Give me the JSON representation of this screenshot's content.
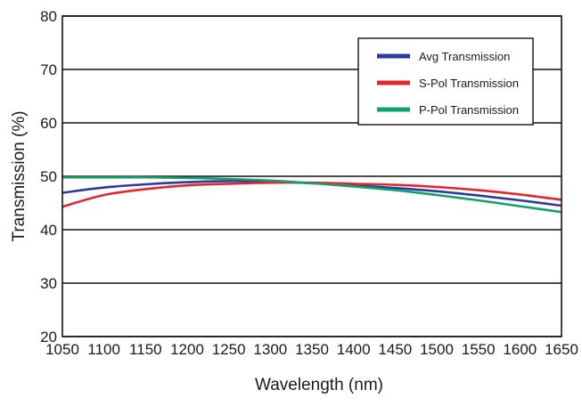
{
  "chart_data": {
    "type": "line",
    "title": "",
    "xlabel": "Wavelength (nm)",
    "ylabel": "Transmission (%)",
    "xlim": [
      1050,
      1650
    ],
    "ylim": [
      20,
      80
    ],
    "xticks": [
      "1050",
      "1100",
      "1150",
      "1200",
      "1250",
      "1300",
      "1350",
      "1400",
      "1450",
      "1500",
      "1550",
      "1600",
      "1650"
    ],
    "yticks": [
      "20",
      "30",
      "40",
      "50",
      "60",
      "70",
      "80"
    ],
    "grid": "horizontal",
    "legend_position": "top-right",
    "series": [
      {
        "name": "Avg Transmission",
        "color": "#2b3a9c",
        "x": [
          1050,
          1100,
          1150,
          1200,
          1250,
          1300,
          1350,
          1400,
          1450,
          1500,
          1550,
          1600,
          1650
        ],
        "y": [
          46.9,
          47.9,
          48.5,
          48.9,
          49.1,
          49.0,
          48.7,
          48.3,
          47.8,
          47.2,
          46.4,
          45.5,
          44.5
        ]
      },
      {
        "name": "S-Pol Transmission",
        "color": "#e1262d",
        "x": [
          1050,
          1100,
          1150,
          1200,
          1250,
          1300,
          1350,
          1400,
          1450,
          1500,
          1550,
          1600,
          1650
        ],
        "y": [
          44.3,
          46.5,
          47.6,
          48.3,
          48.6,
          48.8,
          48.8,
          48.6,
          48.4,
          48.0,
          47.4,
          46.6,
          45.6
        ]
      },
      {
        "name": "P-Pol Transmission",
        "color": "#13a06b",
        "x": [
          1050,
          1100,
          1150,
          1200,
          1250,
          1300,
          1350,
          1400,
          1450,
          1500,
          1550,
          1600,
          1650
        ],
        "y": [
          49.8,
          49.8,
          49.8,
          49.7,
          49.5,
          49.2,
          48.7,
          48.1,
          47.4,
          46.5,
          45.5,
          44.4,
          43.3
        ]
      }
    ]
  }
}
